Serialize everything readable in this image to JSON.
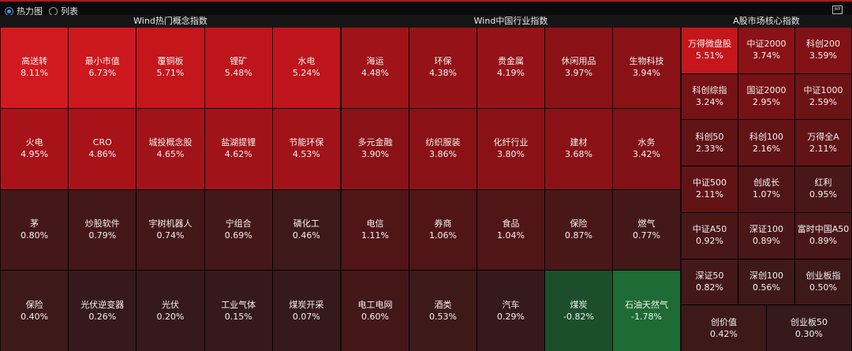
{
  "view_toggle": {
    "heatmap_label": "热力图",
    "list_label": "列表",
    "selected": "heatmap"
  },
  "sections": [
    {
      "title": "Wind热门概念指数",
      "tiles": [
        {
          "name": "高送转",
          "pct": "8.11%"
        },
        {
          "name": "最小市值",
          "pct": "6.73%"
        },
        {
          "name": "覆铜板",
          "pct": "5.71%"
        },
        {
          "name": "锂矿",
          "pct": "5.48%"
        },
        {
          "name": "水电",
          "pct": "5.24%"
        },
        {
          "name": "火电",
          "pct": "4.95%"
        },
        {
          "name": "CRO",
          "pct": "4.86%"
        },
        {
          "name": "城投概念股",
          "pct": "4.65%"
        },
        {
          "name": "盐湖提锂",
          "pct": "4.62%"
        },
        {
          "name": "节能环保",
          "pct": "4.53%"
        },
        {
          "name": "茅",
          "pct": "0.80%"
        },
        {
          "name": "炒股软件",
          "pct": "0.79%"
        },
        {
          "name": "宇树机器人",
          "pct": "0.74%"
        },
        {
          "name": "宁组合",
          "pct": "0.69%"
        },
        {
          "name": "磷化工",
          "pct": "0.46%"
        },
        {
          "name": "保险",
          "pct": "0.40%"
        },
        {
          "name": "光伏逆变器",
          "pct": "0.26%"
        },
        {
          "name": "光伏",
          "pct": "0.20%"
        },
        {
          "name": "工业气体",
          "pct": "0.15%"
        },
        {
          "name": "煤炭开采",
          "pct": "0.07%"
        }
      ]
    },
    {
      "title": "Wind中国行业指数",
      "tiles": [
        {
          "name": "海运",
          "pct": "4.48%"
        },
        {
          "name": "环保",
          "pct": "4.38%"
        },
        {
          "name": "贵金属",
          "pct": "4.19%"
        },
        {
          "name": "休闲用品",
          "pct": "3.97%"
        },
        {
          "name": "生物科技",
          "pct": "3.94%"
        },
        {
          "name": "多元金融",
          "pct": "3.90%"
        },
        {
          "name": "纺织服装",
          "pct": "3.86%"
        },
        {
          "name": "化纤行业",
          "pct": "3.80%"
        },
        {
          "name": "建材",
          "pct": "3.68%"
        },
        {
          "name": "水务",
          "pct": "3.42%"
        },
        {
          "name": "电信",
          "pct": "1.11%"
        },
        {
          "name": "券商",
          "pct": "1.06%"
        },
        {
          "name": "食品",
          "pct": "1.04%"
        },
        {
          "name": "保险",
          "pct": "0.87%"
        },
        {
          "name": "燃气",
          "pct": "0.77%"
        },
        {
          "name": "电工电网",
          "pct": "0.60%"
        },
        {
          "name": "酒类",
          "pct": "0.53%"
        },
        {
          "name": "汽车",
          "pct": "0.29%"
        },
        {
          "name": "煤炭",
          "pct": "-0.82%"
        },
        {
          "name": "石油天然气",
          "pct": "-1.78%"
        }
      ]
    },
    {
      "title": "A股市场核心指数",
      "tiles": [
        {
          "name": "万得微盘股",
          "pct": "5.51%"
        },
        {
          "name": "中证2000",
          "pct": "3.74%"
        },
        {
          "name": "科创200",
          "pct": "3.59%"
        },
        {
          "name": "科创综指",
          "pct": "3.24%"
        },
        {
          "name": "国证2000",
          "pct": "2.95%"
        },
        {
          "name": "中证1000",
          "pct": "2.59%"
        },
        {
          "name": "科创50",
          "pct": "2.33%"
        },
        {
          "name": "科创100",
          "pct": "2.16%"
        },
        {
          "name": "万得全A",
          "pct": "2.11%"
        },
        {
          "name": "中证500",
          "pct": "2.11%"
        },
        {
          "name": "创成长",
          "pct": "1.07%"
        },
        {
          "name": "红利",
          "pct": "0.95%"
        },
        {
          "name": "中证A50",
          "pct": "0.92%"
        },
        {
          "name": "深证100",
          "pct": "0.89%"
        },
        {
          "name": "富时中国A50",
          "pct": "0.89%"
        },
        {
          "name": "深证50",
          "pct": "0.82%"
        },
        {
          "name": "深创100",
          "pct": "0.56%"
        },
        {
          "name": "创业板指",
          "pct": "0.50%"
        },
        {
          "name": "创价值",
          "pct": "0.42%"
        },
        {
          "name": "创业板50",
          "pct": "0.30%"
        }
      ]
    }
  ]
}
